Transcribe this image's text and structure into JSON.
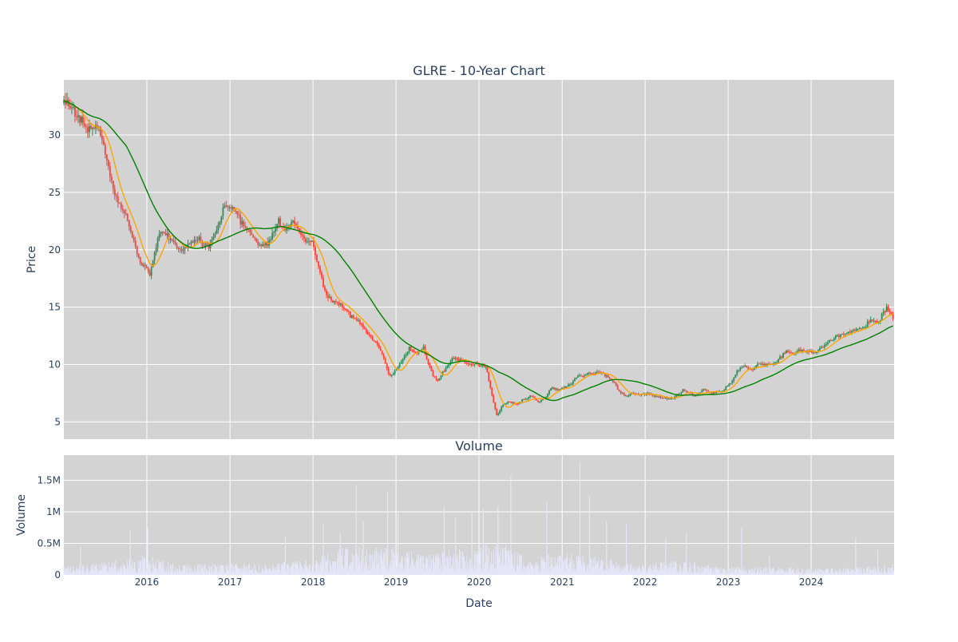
{
  "chart_data": [
    {
      "type": "candlestick",
      "title": "GLRE - 10-Year Chart",
      "ylabel": "Price",
      "xlabel": "",
      "x_range": [
        "2015-01-01",
        "2024-12-31"
      ],
      "ylim": [
        3.5,
        34.8
      ],
      "y_ticks": [
        5,
        10,
        15,
        20,
        25,
        30
      ],
      "grid": true,
      "price_path": [
        [
          "2015-01-01",
          32.8
        ],
        [
          "2015-02-10",
          32.4
        ],
        [
          "2015-03-15",
          31.2
        ],
        [
          "2015-04-20",
          30.5
        ],
        [
          "2015-06-01",
          30.8
        ],
        [
          "2015-07-01",
          28.5
        ],
        [
          "2015-08-01",
          25.5
        ],
        [
          "2015-09-01",
          24.0
        ],
        [
          "2015-10-01",
          23.0
        ],
        [
          "2015-11-01",
          21.0
        ],
        [
          "2015-12-01",
          19.0
        ],
        [
          "2016-01-15",
          18.0
        ],
        [
          "2016-02-01",
          19.5
        ],
        [
          "2016-03-01",
          21.5
        ],
        [
          "2016-04-01",
          21.5
        ],
        [
          "2016-05-01",
          20.5
        ],
        [
          "2016-06-01",
          19.8
        ],
        [
          "2016-07-01",
          20.5
        ],
        [
          "2016-08-01",
          21.0
        ],
        [
          "2016-09-01",
          20.5
        ],
        [
          "2016-10-01",
          20.2
        ],
        [
          "2016-11-01",
          21.5
        ],
        [
          "2016-12-01",
          23.5
        ],
        [
          "2017-01-01",
          23.8
        ],
        [
          "2017-02-01",
          23.0
        ],
        [
          "2017-03-01",
          22.0
        ],
        [
          "2017-04-01",
          21.5
        ],
        [
          "2017-05-01",
          20.5
        ],
        [
          "2017-06-01",
          20.5
        ],
        [
          "2017-07-01",
          21.0
        ],
        [
          "2017-08-01",
          22.5
        ],
        [
          "2017-09-01",
          21.5
        ],
        [
          "2017-10-01",
          22.5
        ],
        [
          "2017-11-01",
          21.5
        ],
        [
          "2017-12-01",
          20.8
        ],
        [
          "2018-01-01",
          20.5
        ],
        [
          "2018-02-01",
          18.0
        ],
        [
          "2018-03-01",
          16.0
        ],
        [
          "2018-04-01",
          15.5
        ],
        [
          "2018-05-01",
          15.2
        ],
        [
          "2018-06-01",
          14.5
        ],
        [
          "2018-07-01",
          14.0
        ],
        [
          "2018-08-01",
          13.5
        ],
        [
          "2018-09-01",
          12.5
        ],
        [
          "2018-10-01",
          12.0
        ],
        [
          "2018-11-01",
          11.0
        ],
        [
          "2018-12-01",
          9.0
        ],
        [
          "2019-01-01",
          9.5
        ],
        [
          "2019-02-01",
          10.5
        ],
        [
          "2019-03-01",
          11.5
        ],
        [
          "2019-04-01",
          11.0
        ],
        [
          "2019-05-01",
          11.5
        ],
        [
          "2019-06-01",
          9.5
        ],
        [
          "2019-07-01",
          8.5
        ],
        [
          "2019-08-01",
          9.5
        ],
        [
          "2019-09-01",
          10.5
        ],
        [
          "2019-10-01",
          10.5
        ],
        [
          "2019-11-01",
          10.2
        ],
        [
          "2019-12-01",
          10.0
        ],
        [
          "2020-01-01",
          10.0
        ],
        [
          "2020-02-01",
          9.8
        ],
        [
          "2020-03-01",
          7.0
        ],
        [
          "2020-03-20",
          5.5
        ],
        [
          "2020-04-15",
          6.5
        ],
        [
          "2020-05-15",
          6.8
        ],
        [
          "2020-06-15",
          6.5
        ],
        [
          "2020-07-15",
          7.0
        ],
        [
          "2020-08-15",
          7.2
        ],
        [
          "2020-09-15",
          6.8
        ],
        [
          "2020-10-15",
          7.0
        ],
        [
          "2020-11-15",
          8.0
        ],
        [
          "2020-12-15",
          7.8
        ],
        [
          "2021-01-15",
          8.0
        ],
        [
          "2021-02-15",
          8.5
        ],
        [
          "2021-03-15",
          9.0
        ],
        [
          "2021-04-15",
          9.2
        ],
        [
          "2021-05-15",
          9.2
        ],
        [
          "2021-06-15",
          9.3
        ],
        [
          "2021-07-15",
          9.0
        ],
        [
          "2021-08-15",
          8.5
        ],
        [
          "2021-09-15",
          7.5
        ],
        [
          "2021-10-15",
          7.3
        ],
        [
          "2021-11-15",
          7.5
        ],
        [
          "2021-12-15",
          7.3
        ],
        [
          "2022-01-15",
          7.5
        ],
        [
          "2022-02-15",
          7.2
        ],
        [
          "2022-03-15",
          7.2
        ],
        [
          "2022-04-15",
          7.0
        ],
        [
          "2022-05-15",
          7.2
        ],
        [
          "2022-06-15",
          7.8
        ],
        [
          "2022-07-15",
          7.5
        ],
        [
          "2022-08-15",
          7.3
        ],
        [
          "2022-09-15",
          7.8
        ],
        [
          "2022-10-15",
          7.5
        ],
        [
          "2022-11-15",
          7.6
        ],
        [
          "2022-12-15",
          7.8
        ],
        [
          "2023-01-15",
          8.5
        ],
        [
          "2023-02-15",
          9.5
        ],
        [
          "2023-03-15",
          9.8
        ],
        [
          "2023-04-15",
          9.5
        ],
        [
          "2023-05-15",
          10.0
        ],
        [
          "2023-06-15",
          10.0
        ],
        [
          "2023-07-15",
          10.0
        ],
        [
          "2023-08-15",
          10.5
        ],
        [
          "2023-09-15",
          11.2
        ],
        [
          "2023-10-15",
          11.0
        ],
        [
          "2023-11-15",
          11.2
        ],
        [
          "2023-12-15",
          11.2
        ],
        [
          "2024-01-15",
          11.0
        ],
        [
          "2024-02-15",
          11.5
        ],
        [
          "2024-03-15",
          12.0
        ],
        [
          "2024-04-15",
          12.3
        ],
        [
          "2024-05-15",
          12.6
        ],
        [
          "2024-06-15",
          12.8
        ],
        [
          "2024-07-15",
          13.0
        ],
        [
          "2024-08-15",
          13.2
        ],
        [
          "2024-09-15",
          13.8
        ],
        [
          "2024-10-15",
          13.6
        ],
        [
          "2024-11-15",
          14.5
        ],
        [
          "2024-12-01",
          15.0
        ],
        [
          "2024-12-31",
          14.0
        ]
      ],
      "ma_short_color": "#ffa500",
      "ma_long_color": "#008000",
      "up_color": "#2e8b57",
      "down_color": "#ff4136"
    },
    {
      "type": "bar",
      "title": "Volume",
      "ylabel": "Volume",
      "xlabel": "Date",
      "x_range": [
        "2015-01-01",
        "2024-12-31"
      ],
      "ylim": [
        0,
        1900000
      ],
      "y_ticks": [
        0,
        500000,
        1000000,
        1500000
      ],
      "y_tick_labels": [
        "0",
        "0.5M",
        "1M",
        "1.5M"
      ],
      "x_ticks": [
        "2016-01-01",
        "2017-01-01",
        "2018-01-01",
        "2019-01-01",
        "2020-01-01",
        "2021-01-01",
        "2022-01-01",
        "2023-01-01",
        "2024-01-01"
      ],
      "x_tick_labels": [
        "2016",
        "2017",
        "2018",
        "2019",
        "2020",
        "2021",
        "2022",
        "2023",
        "2024"
      ],
      "bar_color": "#e6e6fa",
      "grid": true,
      "level_path": [
        [
          "2015-01-01",
          120000
        ],
        [
          "2015-06-01",
          150000
        ],
        [
          "2016-01-01",
          250000
        ],
        [
          "2016-06-01",
          130000
        ],
        [
          "2017-01-01",
          150000
        ],
        [
          "2017-06-01",
          140000
        ],
        [
          "2018-01-01",
          200000
        ],
        [
          "2018-06-01",
          380000
        ],
        [
          "2018-12-01",
          350000
        ],
        [
          "2019-06-01",
          300000
        ],
        [
          "2019-12-01",
          350000
        ],
        [
          "2020-04-01",
          450000
        ],
        [
          "2020-08-01",
          200000
        ],
        [
          "2021-01-01",
          300000
        ],
        [
          "2021-06-01",
          250000
        ],
        [
          "2021-12-01",
          120000
        ],
        [
          "2022-06-01",
          200000
        ],
        [
          "2022-12-01",
          100000
        ],
        [
          "2023-06-01",
          110000
        ],
        [
          "2023-12-01",
          90000
        ],
        [
          "2024-06-01",
          90000
        ],
        [
          "2024-12-31",
          130000
        ]
      ],
      "spikes": [
        [
          "2015-03-15",
          450000
        ],
        [
          "2015-10-20",
          700000
        ],
        [
          "2016-01-05",
          750000
        ],
        [
          "2017-09-01",
          600000
        ],
        [
          "2018-02-15",
          820000
        ],
        [
          "2018-05-01",
          650000
        ],
        [
          "2018-07-10",
          1420000
        ],
        [
          "2018-08-10",
          850000
        ],
        [
          "2018-11-25",
          1330000
        ],
        [
          "2019-01-10",
          980000
        ],
        [
          "2019-08-01",
          1080000
        ],
        [
          "2019-09-20",
          900000
        ],
        [
          "2019-12-01",
          980000
        ],
        [
          "2020-01-20",
          1050000
        ],
        [
          "2020-03-25",
          1080000
        ],
        [
          "2020-05-20",
          1580000
        ],
        [
          "2020-10-25",
          1150000
        ],
        [
          "2021-03-20",
          1780000
        ],
        [
          "2021-05-01",
          1240000
        ],
        [
          "2021-07-15",
          850000
        ],
        [
          "2021-10-10",
          800000
        ],
        [
          "2022-04-01",
          590000
        ],
        [
          "2022-07-01",
          650000
        ],
        [
          "2023-03-01",
          750000
        ],
        [
          "2023-07-01",
          300000
        ],
        [
          "2024-07-15",
          580000
        ],
        [
          "2024-10-20",
          400000
        ]
      ]
    }
  ]
}
